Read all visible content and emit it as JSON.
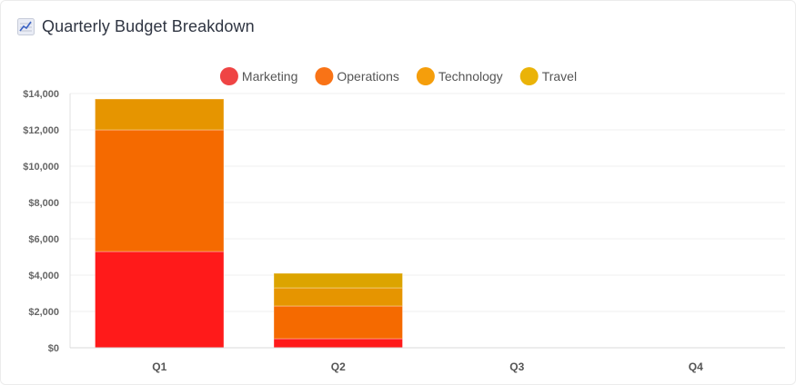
{
  "header": {
    "title": "Quarterly Budget Breakdown",
    "icon": "line-chart-icon"
  },
  "chart_data": {
    "type": "bar",
    "stacked": true,
    "title": "",
    "xlabel": "",
    "ylabel": "",
    "categories": [
      "Q1",
      "Q2",
      "Q3",
      "Q4"
    ],
    "series": [
      {
        "name": "Marketing",
        "color": "#ff1a1a",
        "legend_color": "#ef4444",
        "values": [
          5300,
          500,
          0,
          0
        ]
      },
      {
        "name": "Operations",
        "color": "#f56a00",
        "legend_color": "#f97316",
        "values": [
          6700,
          1800,
          0,
          0
        ]
      },
      {
        "name": "Technology",
        "color": "#e69500",
        "legend_color": "#f59e0b",
        "values": [
          1700,
          1000,
          0,
          0
        ]
      },
      {
        "name": "Travel",
        "color": "#dca400",
        "legend_color": "#eab308",
        "values": [
          0,
          800,
          0,
          0
        ]
      }
    ],
    "ylim": [
      0,
      14000
    ],
    "y_ticks": [
      "$0",
      "$2,000",
      "$4,000",
      "$6,000",
      "$8,000",
      "$10,000",
      "$12,000",
      "$14,000"
    ],
    "y_tick_values": [
      0,
      2000,
      4000,
      6000,
      8000,
      10000,
      12000,
      14000
    ],
    "grid": true,
    "legend_position": "top-center"
  }
}
